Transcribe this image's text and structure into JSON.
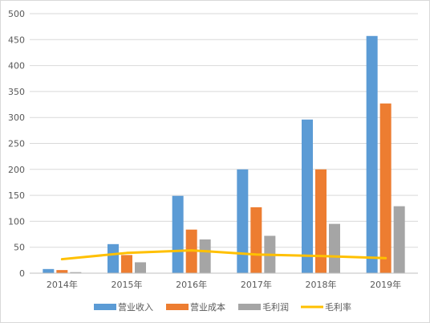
{
  "chart_data": {
    "type": "bar",
    "categories": [
      "2014年",
      "2015年",
      "2016年",
      "2017年",
      "2018年",
      "2019年"
    ],
    "series": [
      {
        "name": "营业收入",
        "type": "bar",
        "color": "#5B9BD5",
        "values": [
          8,
          56,
          149,
          200,
          296,
          457
        ]
      },
      {
        "name": "营业成本",
        "type": "bar",
        "color": "#ED7D31",
        "values": [
          6,
          35,
          84,
          127,
          200,
          327
        ]
      },
      {
        "name": "毛利润",
        "type": "bar",
        "color": "#A5A5A5",
        "values": [
          2,
          21,
          65,
          72,
          95,
          129
        ]
      },
      {
        "name": "毛利率",
        "type": "line",
        "color": "#FFC000",
        "values": [
          27,
          39,
          44,
          36,
          33,
          29
        ]
      }
    ],
    "ylim": [
      0,
      500
    ],
    "yticks": [
      0,
      50,
      100,
      150,
      200,
      250,
      300,
      350,
      400,
      450,
      500
    ],
    "grid": true,
    "legend_position": "bottom"
  }
}
